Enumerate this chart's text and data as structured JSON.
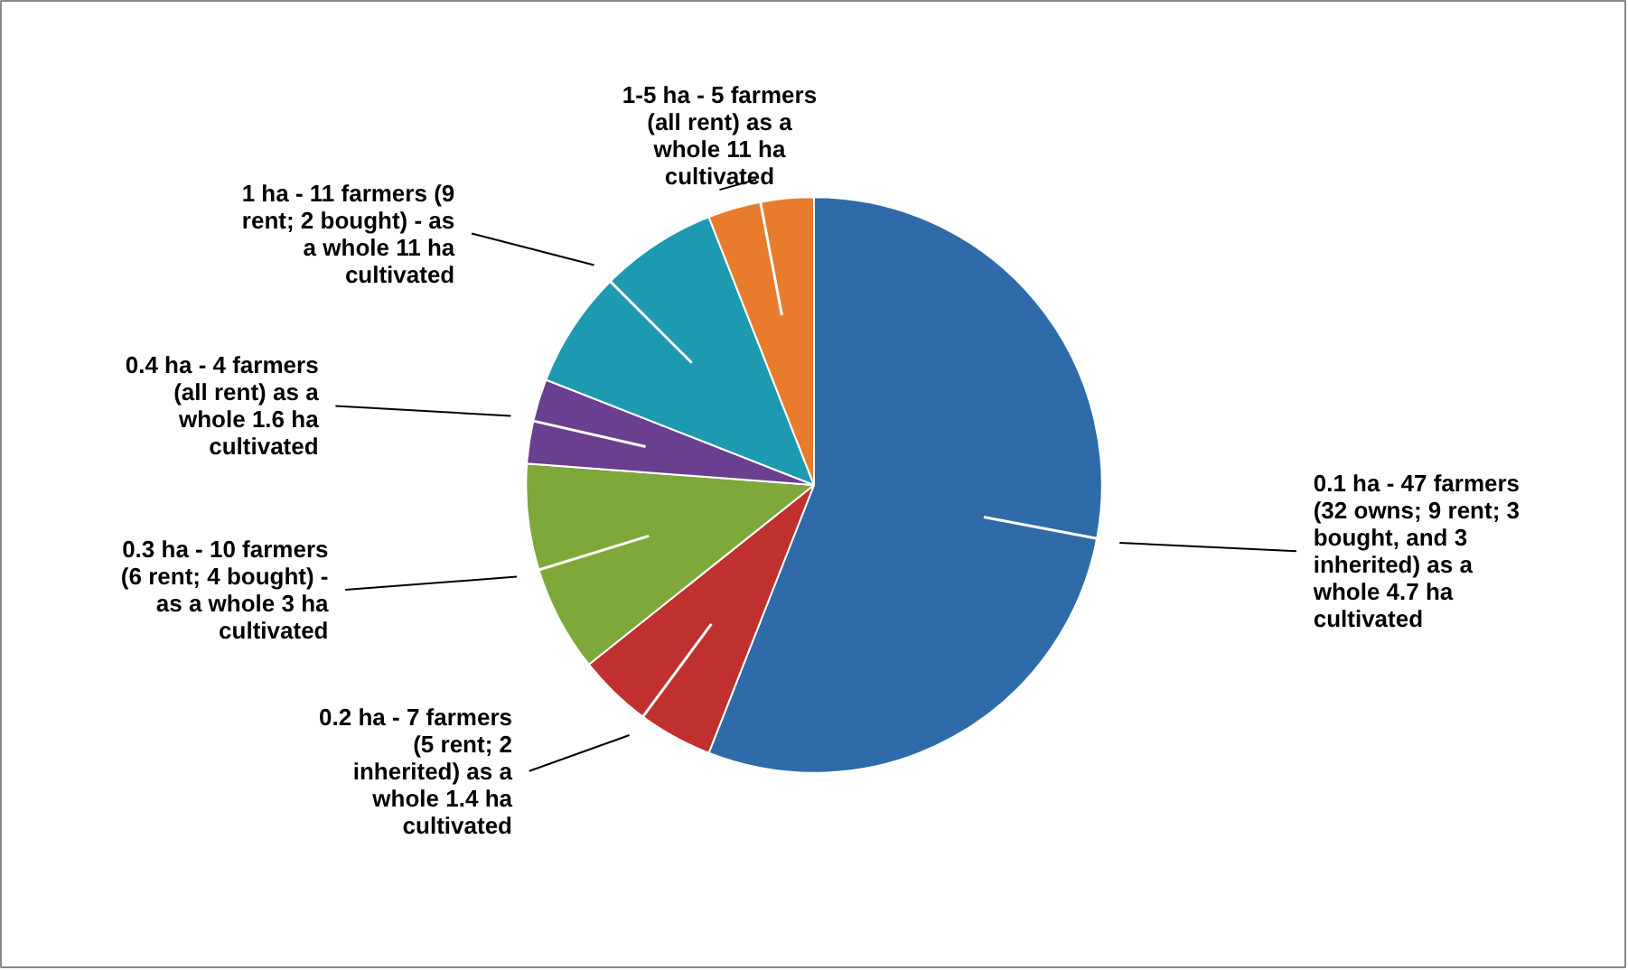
{
  "chart_data": {
    "type": "pie",
    "categories": [
      "0.1 ha - 47 farmers (32 owns; 9 rent; 3 bought, and 3 inherited) as a whole 4.7 ha cultivated",
      "0.2 ha - 7 farmers (5 rent; 2 inherited) as a whole 1.4 ha cultivated",
      "0.3 ha - 10 farmers (6 rent; 4 bought) - as a whole 3 ha cultivated",
      "0.4 ha - 4 farmers (all rent) as a whole 1.6 ha cultivated",
      "1 ha - 11 farmers (9 rent; 2 bought) - as a whole 11 ha cultivated",
      "1-5 ha - 5 farmers (all rent) as a whole 11 ha cultivated"
    ],
    "values": [
      47,
      7,
      10,
      4,
      11,
      5
    ],
    "colors": [
      "#2e6ba8",
      "#c0302f",
      "#7fa83a",
      "#6b3f8f",
      "#1e9ab0",
      "#e87b2c"
    ]
  }
}
